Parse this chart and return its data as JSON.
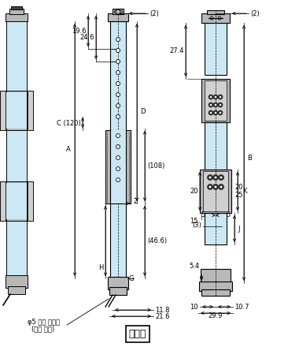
{
  "title": "수광기",
  "bg_color": "#ffffff",
  "light_blue": "#cce8f4",
  "gray": "#888888",
  "dark_gray": "#444444",
  "light_gray": "#b8b8b8",
  "med_gray": "#d0d0d0",
  "cable_label": "φ5 회색 케이블",
  "cable_label2": "(십색 라인)"
}
